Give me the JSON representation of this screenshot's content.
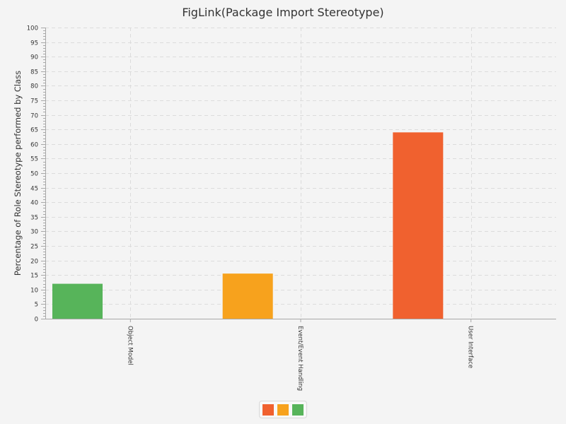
{
  "chart_data": {
    "type": "bar",
    "title": "FigLink(Package Import Stereotype)",
    "xlabel": "",
    "ylabel": "Percentage of Role Stereotype performed by Class",
    "ylim": [
      0,
      100
    ],
    "ytick_step": 5,
    "yticks": [
      "0",
      "5",
      "10",
      "15",
      "20",
      "25",
      "30",
      "35",
      "40",
      "45",
      "50",
      "55",
      "60",
      "65",
      "70",
      "75",
      "80",
      "85",
      "90",
      "95",
      "100"
    ],
    "categories": [
      "Object Model",
      "Event/Event Handling",
      "User Interface"
    ],
    "values": [
      12,
      15.5,
      64
    ],
    "bar_colors": [
      "#57b45a",
      "#f7a21d",
      "#f0612f"
    ],
    "grid": true,
    "legend": {
      "placement": "bottom-center",
      "items": [
        {
          "name": "",
          "color": "#f0612f"
        },
        {
          "name": "",
          "color": "#f7a21d"
        },
        {
          "name": "",
          "color": "#57b45a"
        }
      ]
    }
  }
}
